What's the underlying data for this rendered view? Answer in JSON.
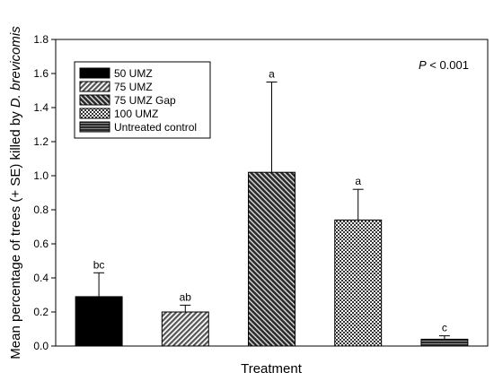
{
  "chart_data": {
    "type": "bar",
    "xlabel": "Treatment",
    "ylabel_prefix": "Mean percentage of trees (+ SE) killed by ",
    "ylabel_italic": "D. brevicomis",
    "ylim": [
      0,
      1.8
    ],
    "yticks": [
      "0.0",
      "0.2",
      "0.4",
      "0.6",
      "0.8",
      "1.0",
      "1.2",
      "1.4",
      "1.6",
      "1.8"
    ],
    "grid": false,
    "legend_position": "top-left",
    "annotation": {
      "p_italic": "P",
      "text": " < 0.001"
    },
    "series": [
      {
        "name": "50 UMZ",
        "value": 0.29,
        "se": 0.14,
        "label": "bc",
        "pattern": "solid"
      },
      {
        "name": "75 UMZ",
        "value": 0.2,
        "se": 0.04,
        "label": "ab",
        "pattern": "light-diagonal"
      },
      {
        "name": "75 UMZ Gap",
        "value": 1.02,
        "se": 0.53,
        "label": "a",
        "pattern": "dark-diagonal"
      },
      {
        "name": "100 UMZ",
        "value": 0.74,
        "se": 0.18,
        "label": "a",
        "pattern": "crosshatch"
      },
      {
        "name": "Untreated control",
        "value": 0.04,
        "se": 0.02,
        "label": "c",
        "pattern": "dark-horizontal"
      }
    ]
  }
}
